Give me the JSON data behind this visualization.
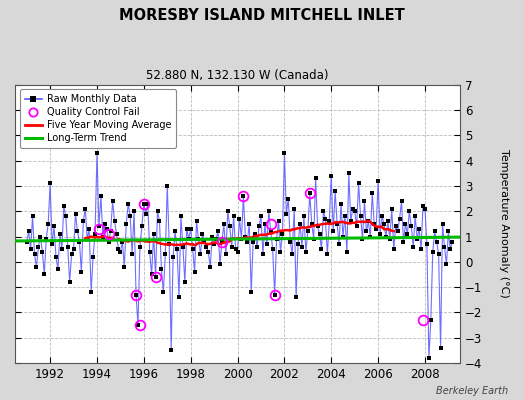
{
  "title": "MORESBY ISLAND MITCHELL INLET",
  "subtitle": "52.880 N, 132.130 W (Canada)",
  "ylabel": "Temperature Anomaly (°C)",
  "xlim": [
    1990.5,
    2009.5
  ],
  "ylim": [
    -4,
    7
  ],
  "yticks": [
    -4,
    -3,
    -2,
    -1,
    0,
    1,
    2,
    3,
    4,
    5,
    6,
    7
  ],
  "xticks": [
    1992,
    1994,
    1996,
    1998,
    2000,
    2002,
    2004,
    2006,
    2008
  ],
  "background_color": "#d8d8d8",
  "plot_bg_color": "#ffffff",
  "raw_color": "#5555ff",
  "dot_color": "#000000",
  "ma_color": "#ff0000",
  "trend_color": "#00bb00",
  "qc_color": "#ff00ff",
  "watermark": "Berkeley Earth",
  "long_term_trend_value": 0.9,
  "trend_slope": 0.008,
  "months": [
    1991.0,
    1991.083,
    1991.167,
    1991.25,
    1991.333,
    1991.417,
    1991.5,
    1991.583,
    1991.667,
    1991.75,
    1991.833,
    1991.917,
    1992.0,
    1992.083,
    1992.167,
    1992.25,
    1992.333,
    1992.417,
    1992.5,
    1992.583,
    1992.667,
    1992.75,
    1992.833,
    1992.917,
    1993.0,
    1993.083,
    1993.167,
    1993.25,
    1993.333,
    1993.417,
    1993.5,
    1993.583,
    1993.667,
    1993.75,
    1993.833,
    1993.917,
    1994.0,
    1994.083,
    1994.167,
    1994.25,
    1994.333,
    1994.417,
    1994.5,
    1994.583,
    1994.667,
    1994.75,
    1994.833,
    1994.917,
    1995.0,
    1995.083,
    1995.167,
    1995.25,
    1995.333,
    1995.417,
    1995.5,
    1995.583,
    1995.667,
    1995.75,
    1995.833,
    1995.917,
    1996.0,
    1996.083,
    1996.167,
    1996.25,
    1996.333,
    1996.417,
    1996.5,
    1996.583,
    1996.667,
    1996.75,
    1996.833,
    1996.917,
    1997.0,
    1997.083,
    1997.167,
    1997.25,
    1997.333,
    1997.417,
    1997.5,
    1997.583,
    1997.667,
    1997.75,
    1997.833,
    1997.917,
    1998.0,
    1998.083,
    1998.167,
    1998.25,
    1998.333,
    1998.417,
    1998.5,
    1998.583,
    1998.667,
    1998.75,
    1998.833,
    1998.917,
    1999.0,
    1999.083,
    1999.167,
    1999.25,
    1999.333,
    1999.417,
    1999.5,
    1999.583,
    1999.667,
    1999.75,
    1999.833,
    1999.917,
    2000.0,
    2000.083,
    2000.167,
    2000.25,
    2000.333,
    2000.417,
    2000.5,
    2000.583,
    2000.667,
    2000.75,
    2000.833,
    2000.917,
    2001.0,
    2001.083,
    2001.167,
    2001.25,
    2001.333,
    2001.417,
    2001.5,
    2001.583,
    2001.667,
    2001.75,
    2001.833,
    2001.917,
    2002.0,
    2002.083,
    2002.167,
    2002.25,
    2002.333,
    2002.417,
    2002.5,
    2002.583,
    2002.667,
    2002.75,
    2002.833,
    2002.917,
    2003.0,
    2003.083,
    2003.167,
    2003.25,
    2003.333,
    2003.417,
    2003.5,
    2003.583,
    2003.667,
    2003.75,
    2003.833,
    2003.917,
    2004.0,
    2004.083,
    2004.167,
    2004.25,
    2004.333,
    2004.417,
    2004.5,
    2004.583,
    2004.667,
    2004.75,
    2004.833,
    2004.917,
    2005.0,
    2005.083,
    2005.167,
    2005.25,
    2005.333,
    2005.417,
    2005.5,
    2005.583,
    2005.667,
    2005.75,
    2005.833,
    2005.917,
    2006.0,
    2006.083,
    2006.167,
    2006.25,
    2006.333,
    2006.417,
    2006.5,
    2006.583,
    2006.667,
    2006.75,
    2006.833,
    2006.917,
    2007.0,
    2007.083,
    2007.167,
    2007.25,
    2007.333,
    2007.417,
    2007.5,
    2007.583,
    2007.667,
    2007.75,
    2007.833,
    2007.917,
    2008.0,
    2008.083,
    2008.167,
    2008.25,
    2008.333,
    2008.417,
    2008.5,
    2008.583,
    2008.667,
    2008.75,
    2008.833,
    2008.917,
    2009.0,
    2009.083,
    2009.167
  ],
  "values": [
    0.8,
    1.2,
    0.5,
    1.8,
    0.3,
    -0.2,
    0.6,
    1.0,
    0.4,
    -0.5,
    0.9,
    1.5,
    3.1,
    0.7,
    1.4,
    0.2,
    -0.3,
    1.1,
    0.5,
    2.2,
    1.8,
    0.6,
    -0.8,
    0.3,
    0.5,
    1.9,
    1.2,
    0.8,
    -0.4,
    1.6,
    2.1,
    0.9,
    1.3,
    -1.2,
    0.2,
    1.1,
    4.3,
    1.4,
    2.6,
    1.0,
    1.5,
    1.3,
    0.8,
    1.2,
    2.4,
    1.6,
    1.1,
    0.5,
    0.4,
    0.8,
    -0.2,
    1.5,
    2.3,
    1.8,
    0.3,
    2.0,
    -1.3,
    -2.5,
    0.6,
    1.4,
    2.3,
    1.9,
    2.3,
    0.4,
    -0.5,
    1.1,
    -0.6,
    2.0,
    1.6,
    -0.3,
    -1.2,
    0.3,
    3.0,
    0.7,
    -3.5,
    0.2,
    1.2,
    0.5,
    -1.4,
    1.8,
    0.6,
    -0.8,
    1.3,
    0.9,
    1.3,
    0.5,
    -0.4,
    1.6,
    0.9,
    0.3,
    1.1,
    0.8,
    0.6,
    0.4,
    -0.2,
    1.0,
    0.7,
    0.9,
    1.2,
    -0.1,
    0.8,
    1.5,
    0.3,
    2.0,
    1.4,
    0.6,
    1.8,
    0.5,
    0.4,
    1.7,
    0.9,
    2.6,
    1.0,
    0.8,
    1.5,
    -1.2,
    0.8,
    1.1,
    0.6,
    1.4,
    1.8,
    0.3,
    1.5,
    0.7,
    2.0,
    1.2,
    0.5,
    -1.3,
    0.9,
    1.6,
    0.4,
    1.1,
    4.3,
    1.9,
    2.5,
    0.8,
    0.3,
    2.1,
    -1.4,
    0.7,
    1.5,
    0.6,
    1.8,
    0.4,
    1.2,
    2.7,
    1.5,
    0.9,
    3.3,
    1.4,
    1.1,
    0.5,
    2.0,
    1.7,
    0.3,
    1.6,
    3.4,
    1.2,
    2.8,
    1.5,
    0.7,
    2.3,
    1.0,
    1.8,
    0.4,
    3.5,
    1.6,
    2.1,
    2.0,
    1.4,
    3.1,
    1.8,
    0.9,
    2.4,
    1.2,
    1.6,
    1.0,
    2.7,
    1.5,
    1.3,
    3.2,
    1.1,
    1.8,
    1.5,
    1.0,
    1.6,
    0.9,
    2.1,
    0.5,
    1.4,
    1.2,
    1.7,
    2.4,
    0.8,
    1.5,
    1.1,
    2.0,
    1.4,
    0.6,
    1.8,
    0.9,
    1.3,
    0.5,
    2.2,
    2.1,
    0.7,
    -3.8,
    -2.3,
    0.4,
    1.2,
    0.8,
    0.3,
    -3.4,
    1.5,
    0.6,
    -0.1,
    1.2,
    0.5,
    0.8
  ],
  "qc_fails": [
    [
      1994.083,
      1.3
    ],
    [
      1994.5,
      1.1
    ],
    [
      1995.667,
      -1.3
    ],
    [
      1995.833,
      -2.5
    ],
    [
      1996.0,
      2.3
    ],
    [
      1996.5,
      -0.6
    ],
    [
      1999.333,
      0.8
    ],
    [
      2000.25,
      2.6
    ],
    [
      2001.417,
      1.5
    ],
    [
      2001.583,
      -1.3
    ],
    [
      2003.083,
      2.7
    ],
    [
      2007.917,
      -2.3
    ]
  ]
}
